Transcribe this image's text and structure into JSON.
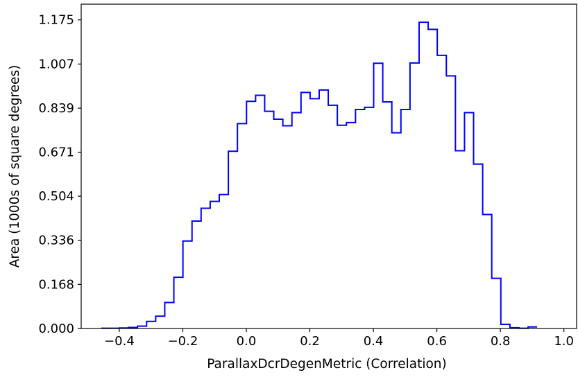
{
  "chart_data": {
    "type": "step",
    "title": "",
    "xlabel": "ParallaxDcrDegenMetric (Correlation)",
    "ylabel": "Area (1000s of square degrees)",
    "xlim": [
      -0.52,
      1.04
    ],
    "ylim": [
      0.0,
      1.235
    ],
    "xticks": [
      -0.4,
      -0.2,
      0.0,
      0.2,
      0.4,
      0.6,
      0.8,
      1.0
    ],
    "xtick_labels": [
      "−0.4",
      "−0.2",
      "0.0",
      "0.2",
      "0.4",
      "0.6",
      "0.8",
      "1.0"
    ],
    "yticks": [
      0.0,
      0.168,
      0.336,
      0.504,
      0.671,
      0.839,
      1.007,
      1.175
    ],
    "ytick_labels": [
      "0.000",
      "0.168",
      "0.336",
      "0.504",
      "0.671",
      "0.839",
      "1.007",
      "1.175"
    ],
    "line_color": "#0000ff",
    "bin_width": 0.0286,
    "bin_edges_start": -0.457,
    "values": [
      0.001,
      0.001,
      0.002,
      0.004,
      0.009,
      0.027,
      0.047,
      0.099,
      0.195,
      0.333,
      0.409,
      0.458,
      0.484,
      0.51,
      0.675,
      0.78,
      0.865,
      0.888,
      0.827,
      0.797,
      0.772,
      0.822,
      0.899,
      0.875,
      0.908,
      0.85,
      0.774,
      0.784,
      0.834,
      0.842,
      1.01,
      0.863,
      0.745,
      0.834,
      1.011,
      1.166,
      1.139,
      1.04,
      0.962,
      0.677,
      0.822,
      0.626,
      0.434,
      0.191,
      0.016,
      0.003,
      0.001,
      0.006
    ]
  }
}
